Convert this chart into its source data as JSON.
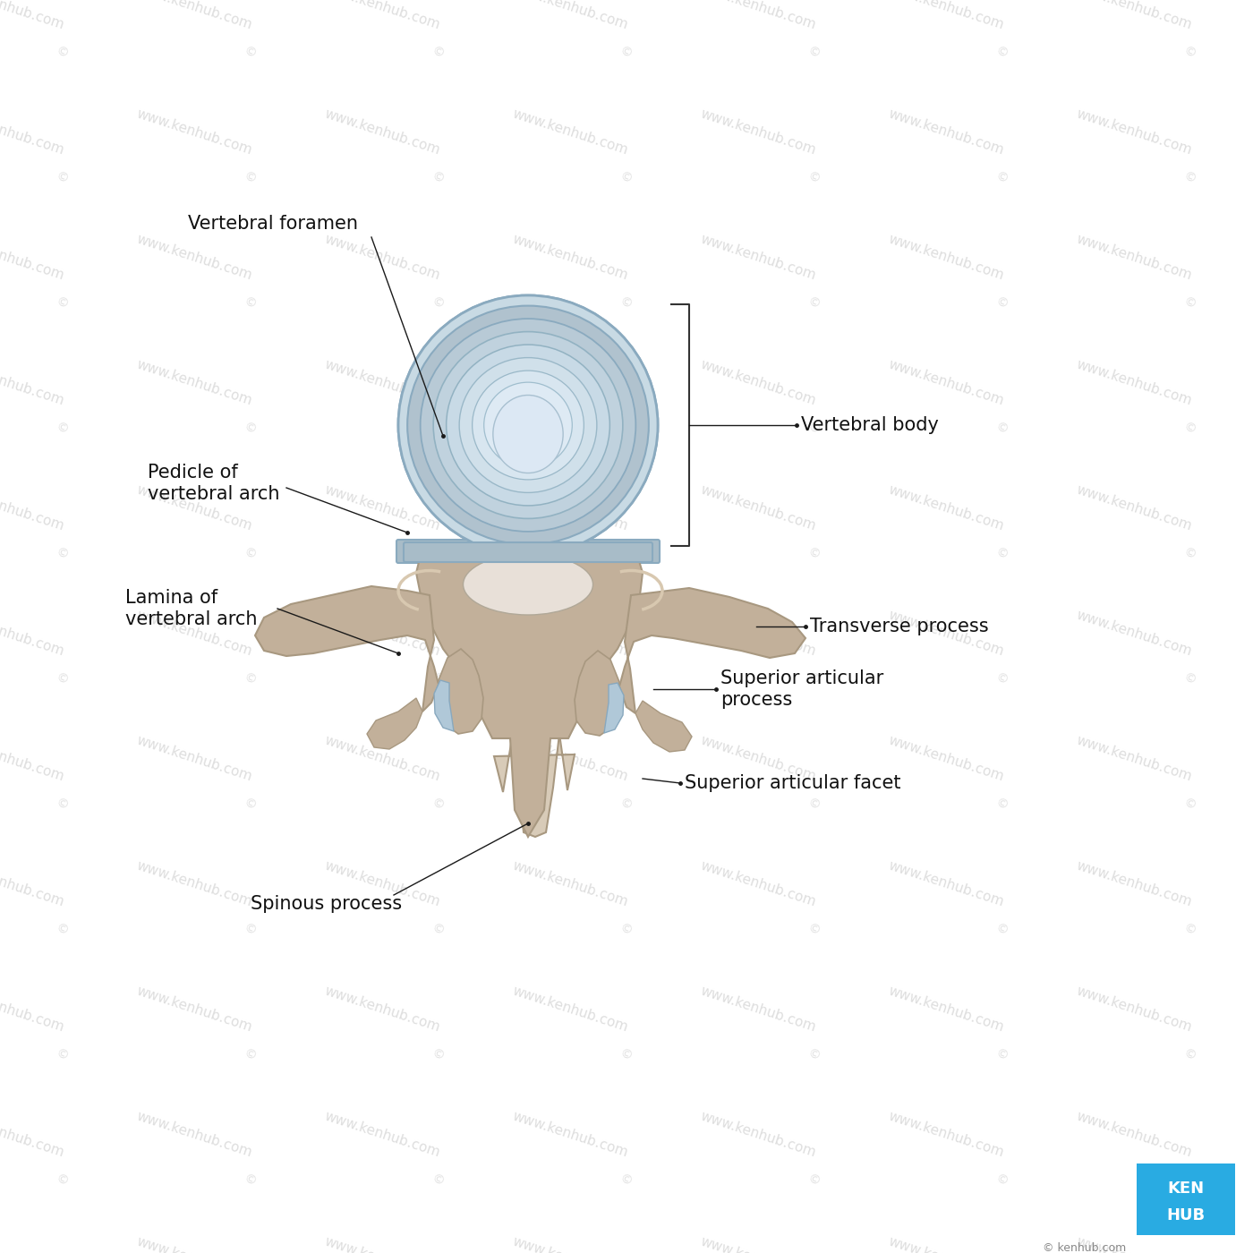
{
  "bg_color": "#ffffff",
  "watermark_text": "www.kenhub.com",
  "watermark_color": "#c8c8c8",
  "font_size": 15,
  "kenhub_blue": "#29ABE2",
  "labels": {
    "vertebral_foramen": "Vertebral foramen",
    "vertebral_body": "Vertebral body",
    "pedicle": "Pedicle of\nvertebral arch",
    "transverse_process": "Transverse process",
    "lamina": "Lamina of\nvertebral arch",
    "superior_articular_process": "Superior articular\nprocess",
    "spinous_process": "Spinous process",
    "superior_articular_facet": "Superior articular facet"
  },
  "bone_color": "#c2b09a",
  "bone_shadow": "#a89880",
  "bone_light": "#d8cbb8",
  "cartilage_base": "#b8ccd8",
  "cartilage_mid": "#c8dae4",
  "cartilage_light": "#d8e8f0",
  "cartilage_nucleus": "#deeaf4"
}
